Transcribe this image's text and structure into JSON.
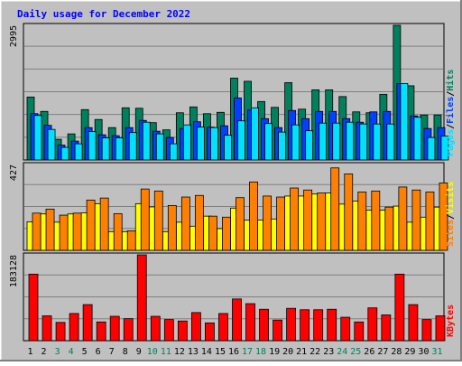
{
  "chart_data": [
    {
      "type": "bar",
      "panel": "hits-files-pages",
      "title": "Daily usage for December 2022",
      "ymax_label": "2995",
      "ylim": [
        0,
        2995
      ],
      "grid": true,
      "legend": [
        {
          "name": "Pages",
          "color": "#00e0ff"
        },
        {
          "name": "Files",
          "color": "#0040ff"
        },
        {
          "name": "Hits",
          "color": "#00805c"
        }
      ],
      "categories": [
        "1",
        "2",
        "3",
        "4",
        "5",
        "6",
        "7",
        "8",
        "9",
        "10",
        "11",
        "12",
        "13",
        "14",
        "15",
        "16",
        "17",
        "18",
        "19",
        "20",
        "21",
        "22",
        "23",
        "24",
        "25",
        "26",
        "27",
        "28",
        "29",
        "30",
        "31"
      ],
      "weekend_days": [
        "3",
        "4",
        "10",
        "11",
        "17",
        "18",
        "24",
        "25",
        "31"
      ],
      "series": [
        {
          "name": "Hits",
          "color": "#00805c",
          "values": [
            1400,
            1080,
            460,
            580,
            1120,
            900,
            720,
            1160,
            1150,
            830,
            670,
            1050,
            1180,
            1030,
            1060,
            1820,
            1750,
            1300,
            1170,
            1720,
            1130,
            1560,
            1560,
            1410,
            1070,
            1050,
            1460,
            2995,
            1650,
            1000,
            1000
          ]
        },
        {
          "name": "Files",
          "color": "#0040ff",
          "values": [
            1030,
            770,
            330,
            420,
            720,
            560,
            540,
            720,
            880,
            640,
            500,
            700,
            850,
            730,
            760,
            1380,
            1110,
            920,
            720,
            1100,
            920,
            1080,
            1080,
            920,
            840,
            1070,
            1080,
            1700,
            980,
            700,
            720
          ]
        },
        {
          "name": "Pages",
          "color": "#00e0ff",
          "values": [
            990,
            680,
            280,
            360,
            630,
            490,
            490,
            610,
            840,
            580,
            360,
            780,
            730,
            720,
            550,
            870,
            1160,
            810,
            620,
            780,
            650,
            820,
            820,
            840,
            800,
            800,
            800,
            1700,
            950,
            500,
            530
          ]
        }
      ]
    },
    {
      "type": "bar",
      "panel": "visits-sites",
      "ymax_label": "427",
      "ylim": [
        0,
        427
      ],
      "grid": true,
      "legend": [
        {
          "name": "Sites",
          "color": "#ff8000"
        },
        {
          "name": "Visits",
          "color": "#ffff00"
        }
      ],
      "categories": [
        "1",
        "2",
        "3",
        "4",
        "5",
        "6",
        "7",
        "8",
        "9",
        "10",
        "11",
        "12",
        "13",
        "14",
        "15",
        "16",
        "17",
        "18",
        "19",
        "20",
        "21",
        "22",
        "23",
        "24",
        "25",
        "26",
        "27",
        "28",
        "29",
        "30",
        "31"
      ],
      "series": [
        {
          "name": "Visits",
          "color": "#ffff00",
          "values": [
            142,
            181,
            140,
            181,
            186,
            232,
            93,
            93,
            232,
            216,
            93,
            140,
            120,
            170,
            108,
            210,
            150,
            151,
            156,
            270,
            270,
            280,
            285,
            230,
            245,
            200,
            200,
            220,
            140,
            165,
            215
          ]
        },
        {
          "name": "Sites",
          "color": "#ff8000",
          "values": [
            185,
            205,
            175,
            185,
            250,
            260,
            182,
            97,
            305,
            295,
            223,
            265,
            273,
            170,
            165,
            262,
            340,
            270,
            265,
            310,
            300,
            285,
            410,
            380,
            290,
            295,
            215,
            315,
            300,
            290,
            335
          ]
        }
      ]
    },
    {
      "type": "bar",
      "panel": "kbytes",
      "ymax_label": "183128",
      "ylim": [
        0,
        183128
      ],
      "grid": true,
      "legend": [
        {
          "name": "KBytes",
          "color": "#ff0000"
        }
      ],
      "categories": [
        "1",
        "2",
        "3",
        "4",
        "5",
        "6",
        "7",
        "8",
        "9",
        "10",
        "11",
        "12",
        "13",
        "14",
        "15",
        "16",
        "17",
        "18",
        "19",
        "20",
        "21",
        "22",
        "23",
        "24",
        "25",
        "26",
        "27",
        "28",
        "29",
        "30",
        "31"
      ],
      "series": [
        {
          "name": "KBytes",
          "color": "#ff0000",
          "values": [
            142000,
            53000,
            39000,
            58000,
            77000,
            40000,
            52000,
            47000,
            183128,
            52000,
            45000,
            42000,
            60000,
            38000,
            58000,
            89000,
            79000,
            67000,
            44000,
            69000,
            66000,
            66000,
            67000,
            50000,
            40000,
            70000,
            55000,
            142000,
            77000,
            45000,
            53000
          ]
        }
      ]
    }
  ]
}
